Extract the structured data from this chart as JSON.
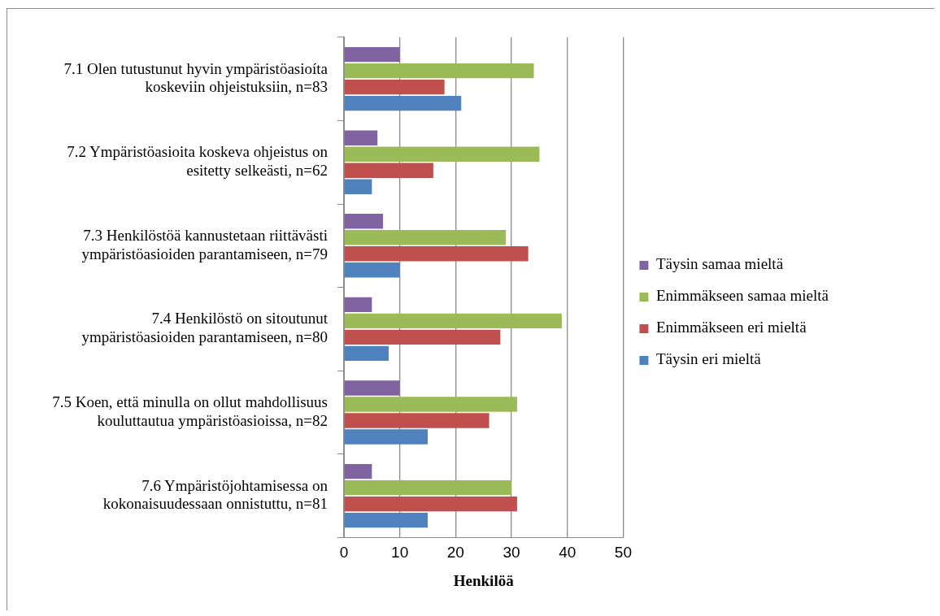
{
  "chart_data": {
    "type": "bar",
    "orientation": "horizontal",
    "xlabel": "Henkilöä",
    "categories": [
      "7.1 Olen tutustunut hyvin ympäristöasioíta koskeviin ohjeistuksiin, n=83",
      "7.2 Ympäristöasioita koskeva ohjeistus on esitetty selkeästi, n=62",
      "7.3 Henkilöstöä kannustetaan riittävästi ympäristöasioiden parantamiseen, n=79",
      "7.4 Henkilöstö on sitoutunut ympäristöasioiden parantamiseen, n=80",
      "7.5 Koen, että minulla on ollut mahdollisuus kouluttautua ympäristöasioissa, n=82",
      "7.6 Ympäristöjohtamisessa on kokonaisuudessaan onnistuttu, n=81"
    ],
    "series": [
      {
        "name": "Täysin samaa mieltä",
        "color": "#8064a2",
        "values": [
          10,
          6,
          7,
          5,
          10,
          5
        ]
      },
      {
        "name": "Enimmäkseen samaa mieltä",
        "color": "#9bbb59",
        "values": [
          34,
          35,
          29,
          39,
          31,
          30
        ]
      },
      {
        "name": "Enimmäkseen eri mieltä",
        "color": "#c0504d",
        "values": [
          18,
          16,
          33,
          28,
          26,
          31
        ]
      },
      {
        "name": "Täysin eri mieltä",
        "color": "#4f81bd",
        "values": [
          21,
          5,
          10,
          8,
          15,
          15
        ]
      }
    ],
    "xlim": [
      0,
      50
    ],
    "xticks": [
      0,
      10,
      20,
      30,
      40,
      50
    ],
    "grid": "x",
    "legend": "right"
  }
}
